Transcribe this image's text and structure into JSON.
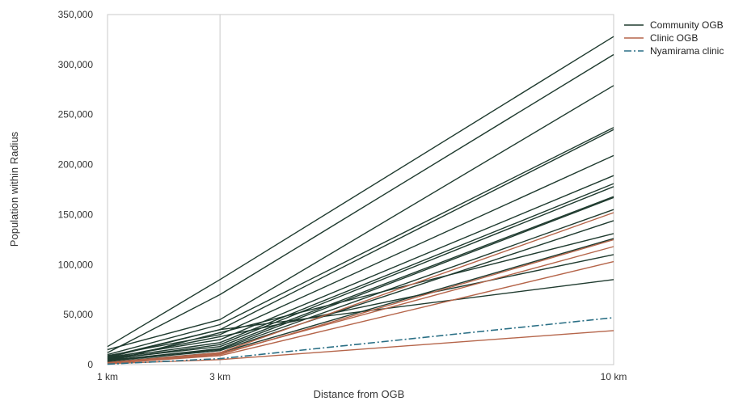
{
  "chart_data": {
    "type": "line",
    "title": "",
    "xlabel": "Distance from OGB",
    "ylabel": "Population within Radius",
    "x_categories": [
      "1 km",
      "3 km",
      "10 km"
    ],
    "x_values": [
      1,
      3,
      10
    ],
    "xlim": [
      1,
      10
    ],
    "ylim": [
      0,
      350000
    ],
    "yticks": [
      0,
      50000,
      100000,
      150000,
      200000,
      250000,
      300000,
      350000
    ],
    "ytick_labels": [
      "0",
      "50,000",
      "100,000",
      "150,000",
      "200,000",
      "250,000",
      "300,000",
      "350,000"
    ],
    "grid": "vertical line at 3 km",
    "legend_position": "top-right",
    "colors": {
      "community": "#1f3b2f",
      "clinic": "#b5654a",
      "nyamirama": "#2a6f85"
    },
    "legend": [
      {
        "label": "Community OGB",
        "style": "solid",
        "color_key": "community"
      },
      {
        "label": "Clinic OGB",
        "style": "solid",
        "color_key": "clinic"
      },
      {
        "label": "Nyamirama clinic",
        "style": "dashdot",
        "color_key": "nyamirama"
      }
    ],
    "series": [
      {
        "group": "community",
        "values": [
          18000,
          85000,
          328000
        ]
      },
      {
        "group": "community",
        "values": [
          12000,
          70000,
          310000
        ]
      },
      {
        "group": "community",
        "values": [
          15000,
          45000,
          279000
        ]
      },
      {
        "group": "community",
        "values": [
          10000,
          40000,
          237000
        ]
      },
      {
        "group": "community",
        "values": [
          8000,
          35000,
          235000
        ]
      },
      {
        "group": "community",
        "values": [
          9000,
          30000,
          209000
        ]
      },
      {
        "group": "community",
        "values": [
          7000,
          25000,
          189000
        ]
      },
      {
        "group": "community",
        "values": [
          6000,
          22000,
          181000
        ]
      },
      {
        "group": "community",
        "values": [
          5000,
          20000,
          178000
        ]
      },
      {
        "group": "community",
        "values": [
          5500,
          18000,
          168000
        ]
      },
      {
        "group": "community",
        "values": [
          4000,
          16000,
          167000
        ]
      },
      {
        "group": "community",
        "values": [
          4500,
          15000,
          155000
        ]
      },
      {
        "group": "community",
        "values": [
          3500,
          14000,
          144000
        ]
      },
      {
        "group": "community",
        "values": [
          3000,
          32000,
          131000
        ]
      },
      {
        "group": "community",
        "values": [
          2500,
          12000,
          126000
        ]
      },
      {
        "group": "community",
        "values": [
          6000,
          28000,
          110000
        ]
      },
      {
        "group": "community",
        "values": [
          7000,
          35000,
          85000
        ]
      },
      {
        "group": "clinic",
        "values": [
          2000,
          12000,
          152000
        ]
      },
      {
        "group": "clinic",
        "values": [
          1500,
          10000,
          125000
        ]
      },
      {
        "group": "clinic",
        "values": [
          1800,
          11000,
          118000
        ]
      },
      {
        "group": "clinic",
        "values": [
          1200,
          9000,
          103000
        ]
      },
      {
        "group": "clinic",
        "values": [
          1000,
          5000,
          34000
        ]
      },
      {
        "group": "nyamirama",
        "values": [
          500,
          6000,
          47000
        ]
      }
    ]
  }
}
